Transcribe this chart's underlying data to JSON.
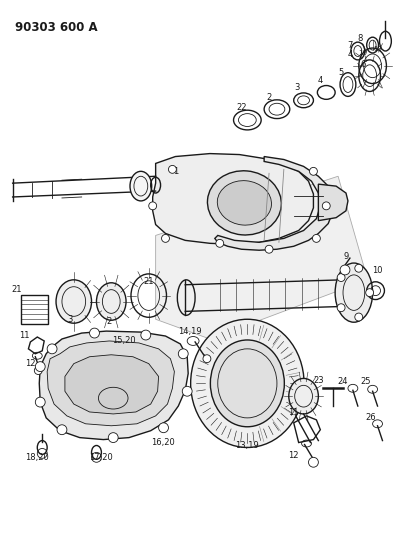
{
  "title": "90303 600 A",
  "bg_color": "#ffffff",
  "line_color": "#1a1a1a",
  "title_fontsize": 8.5,
  "label_fontsize": 6.0,
  "fig_width": 4.03,
  "fig_height": 5.33,
  "dpi": 100
}
